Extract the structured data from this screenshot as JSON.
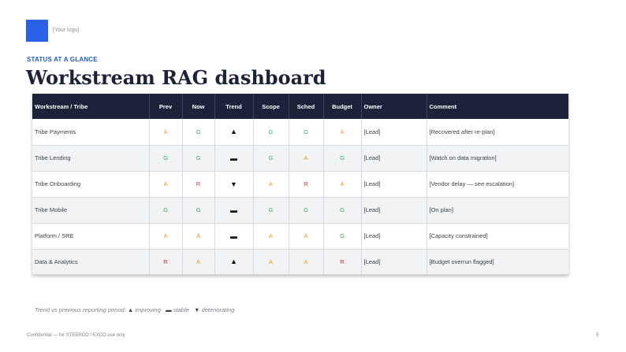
{
  "logo": {
    "placeholder": "[Your logo]",
    "color": "#2962e8"
  },
  "eyebrow": "STATUS AT A GLANCE",
  "title": "Workstream RAG dashboard",
  "table": {
    "headers": [
      "Workstream / Tribe",
      "Prev",
      "Now",
      "Trend",
      "Scope",
      "Sched",
      "Budget",
      "Owner",
      "Comment"
    ],
    "rows": [
      {
        "workstream": "Tribe Payments",
        "prev": "A",
        "now": "G",
        "trend": "▲",
        "scope": "G",
        "sched": "G",
        "budget": "A",
        "owner": "[Lead]",
        "comment": "[Recovered after re-plan]"
      },
      {
        "workstream": "Tribe Lending",
        "prev": "G",
        "now": "G",
        "trend": "▬",
        "scope": "G",
        "sched": "A",
        "budget": "G",
        "owner": "[Lead]",
        "comment": "[Watch on data migration]"
      },
      {
        "workstream": "Tribe Onboarding",
        "prev": "A",
        "now": "R",
        "trend": "▼",
        "scope": "A",
        "sched": "R",
        "budget": "A",
        "owner": "[Lead]",
        "comment": "[Vendor delay — see escalation]"
      },
      {
        "workstream": "Tribe Mobile",
        "prev": "G",
        "now": "G",
        "trend": "▬",
        "scope": "G",
        "sched": "G",
        "budget": "G",
        "owner": "[Lead]",
        "comment": "[On plan]"
      },
      {
        "workstream": "Platform / SRE",
        "prev": "A",
        "now": "A",
        "trend": "▬",
        "scope": "A",
        "sched": "A",
        "budget": "G",
        "owner": "[Lead]",
        "comment": "[Capacity constrained]"
      },
      {
        "workstream": "Data & Analytics",
        "prev": "R",
        "now": "A",
        "trend": "▲",
        "scope": "A",
        "sched": "A",
        "budget": "R",
        "owner": "[Lead]",
        "comment": "[Budget overrun flagged]"
      }
    ]
  },
  "rag_colors": {
    "G": "#3aa35a",
    "A": "#e59a1f",
    "R": "#c8323b"
  },
  "footnote": {
    "lead": "Trend vs previous reporting period:",
    "improving_glyph": "▲",
    "improving": "improving",
    "stable_glyph": "▬",
    "stable": "stable",
    "deteriorating_glyph": "▼",
    "deteriorating": "deteriorating"
  },
  "footer": {
    "confidential": "Confidential — for STEERCO / EXCO use only",
    "page_number": "5"
  }
}
